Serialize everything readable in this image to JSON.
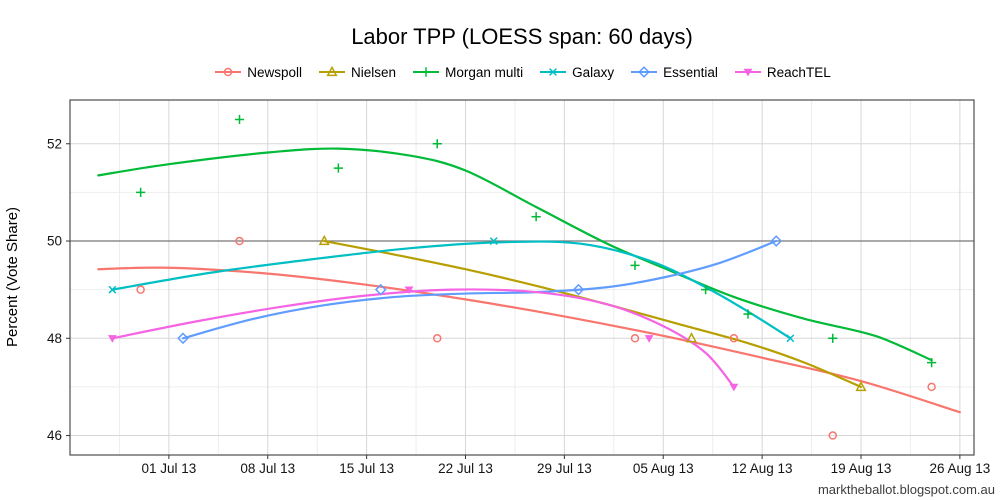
{
  "watermark": "marktheballot.blogspot.com.au",
  "chart_data": {
    "type": "scatter",
    "title": "Labor TPP (LOESS span: 60 days)",
    "ylabel": "Percent (Vote Share)",
    "xlabel": "",
    "legend_position": "top",
    "grid": true,
    "x_domain": [
      "2013-06-24",
      "2013-08-27"
    ],
    "y_domain": [
      45.6,
      52.9
    ],
    "reference_line_y": 50,
    "y_ticks": [
      46,
      48,
      50,
      52
    ],
    "y_minor": [
      47,
      49,
      51
    ],
    "x_ticks": [
      {
        "date": "2013-07-01",
        "label": "01 Jul 13"
      },
      {
        "date": "2013-07-08",
        "label": "08 Jul 13"
      },
      {
        "date": "2013-07-15",
        "label": "15 Jul 13"
      },
      {
        "date": "2013-07-22",
        "label": "22 Jul 13"
      },
      {
        "date": "2013-07-29",
        "label": "29 Jul 13"
      },
      {
        "date": "2013-08-05",
        "label": "05 Aug 13"
      },
      {
        "date": "2013-08-12",
        "label": "12 Aug 13"
      },
      {
        "date": "2013-08-19",
        "label": "19 Aug 13"
      },
      {
        "date": "2013-08-26",
        "label": "26 Aug 13"
      }
    ],
    "x_minor": [
      "2013-06-27T12:00:00Z",
      "2013-07-04T12:00:00Z",
      "2013-07-11T12:00:00Z",
      "2013-07-18T12:00:00Z",
      "2013-07-25T12:00:00Z",
      "2013-08-01T12:00:00Z",
      "2013-08-08T12:00:00Z",
      "2013-08-15T12:00:00Z",
      "2013-08-22T12:00:00Z"
    ],
    "series": [
      {
        "name": "Newspoll",
        "color": "#F8766D",
        "marker": "circle-open",
        "points": [
          [
            "2013-06-29",
            49
          ],
          [
            "2013-07-06",
            50
          ],
          [
            "2013-07-20",
            48
          ],
          [
            "2013-08-03",
            48
          ],
          [
            "2013-08-10",
            48
          ],
          [
            "2013-08-17",
            46
          ],
          [
            "2013-08-24",
            47
          ]
        ],
        "smooth": [
          [
            "2013-06-26",
            49.42
          ],
          [
            "2013-07-01",
            49.45
          ],
          [
            "2013-07-08",
            49.33
          ],
          [
            "2013-07-15",
            49.1
          ],
          [
            "2013-07-22",
            48.8
          ],
          [
            "2013-07-29",
            48.45
          ],
          [
            "2013-08-05",
            48.05
          ],
          [
            "2013-08-12",
            47.6
          ],
          [
            "2013-08-19",
            47.12
          ],
          [
            "2013-08-26",
            46.48
          ]
        ]
      },
      {
        "name": "Nielsen",
        "color": "#B79F00",
        "marker": "triangle-open",
        "points": [
          [
            "2013-07-12",
            50
          ],
          [
            "2013-08-07",
            48
          ],
          [
            "2013-08-19",
            47
          ]
        ],
        "smooth": [
          [
            "2013-07-12",
            50
          ],
          [
            "2013-07-17",
            49.72
          ],
          [
            "2013-07-22",
            49.42
          ],
          [
            "2013-07-27",
            49.08
          ],
          [
            "2013-08-01",
            48.7
          ],
          [
            "2013-08-06",
            48.3
          ],
          [
            "2013-08-11",
            47.9
          ],
          [
            "2013-08-15",
            47.5
          ],
          [
            "2013-08-19",
            47
          ]
        ]
      },
      {
        "name": "Morgan multi",
        "color": "#00BA38",
        "marker": "plus",
        "points": [
          [
            "2013-06-29",
            51
          ],
          [
            "2013-07-06",
            52.5
          ],
          [
            "2013-07-13",
            51.5
          ],
          [
            "2013-07-20",
            52
          ],
          [
            "2013-07-27",
            50.5
          ],
          [
            "2013-08-03",
            49.5
          ],
          [
            "2013-08-08",
            49
          ],
          [
            "2013-08-11",
            48.5
          ],
          [
            "2013-08-17",
            48
          ],
          [
            "2013-08-24",
            47.5
          ]
        ],
        "smooth": [
          [
            "2013-06-26",
            51.35
          ],
          [
            "2013-07-01",
            51.58
          ],
          [
            "2013-07-08",
            51.82
          ],
          [
            "2013-07-13",
            51.9
          ],
          [
            "2013-07-18",
            51.76
          ],
          [
            "2013-07-22",
            51.45
          ],
          [
            "2013-07-27",
            50.7
          ],
          [
            "2013-08-01",
            49.95
          ],
          [
            "2013-08-05",
            49.45
          ],
          [
            "2013-08-10",
            48.85
          ],
          [
            "2013-08-15",
            48.4
          ],
          [
            "2013-08-20",
            48.05
          ],
          [
            "2013-08-24",
            47.55
          ]
        ]
      },
      {
        "name": "Galaxy",
        "color": "#00BFC4",
        "marker": "x",
        "points": [
          [
            "2013-06-27",
            49
          ],
          [
            "2013-07-24",
            50
          ],
          [
            "2013-08-14",
            48
          ]
        ],
        "smooth": [
          [
            "2013-06-27",
            49
          ],
          [
            "2013-07-04",
            49.35
          ],
          [
            "2013-07-11",
            49.62
          ],
          [
            "2013-07-18",
            49.85
          ],
          [
            "2013-07-24",
            49.97
          ],
          [
            "2013-07-30",
            49.95
          ],
          [
            "2013-08-04",
            49.6
          ],
          [
            "2013-08-08",
            49.05
          ],
          [
            "2013-08-11",
            48.55
          ],
          [
            "2013-08-14",
            48
          ]
        ]
      },
      {
        "name": "Essential",
        "color": "#619CFF",
        "marker": "diamond-open",
        "points": [
          [
            "2013-07-02",
            48
          ],
          [
            "2013-07-16",
            49
          ],
          [
            "2013-07-30",
            49
          ],
          [
            "2013-08-13",
            50
          ]
        ],
        "smooth": [
          [
            "2013-07-02",
            48
          ],
          [
            "2013-07-07",
            48.4
          ],
          [
            "2013-07-12",
            48.68
          ],
          [
            "2013-07-17",
            48.85
          ],
          [
            "2013-07-22",
            48.92
          ],
          [
            "2013-07-27",
            48.95
          ],
          [
            "2013-08-01",
            49.05
          ],
          [
            "2013-08-05",
            49.25
          ],
          [
            "2013-08-09",
            49.55
          ],
          [
            "2013-08-13",
            50
          ]
        ]
      },
      {
        "name": "ReachTEL",
        "color": "#F564E3",
        "marker": "triangle-down-filled",
        "points": [
          [
            "2013-06-27",
            48
          ],
          [
            "2013-07-18",
            49
          ],
          [
            "2013-08-04",
            48
          ],
          [
            "2013-08-10",
            47
          ]
        ],
        "smooth": [
          [
            "2013-06-27",
            48
          ],
          [
            "2013-07-03",
            48.35
          ],
          [
            "2013-07-09",
            48.65
          ],
          [
            "2013-07-15",
            48.88
          ],
          [
            "2013-07-21",
            49
          ],
          [
            "2013-07-27",
            48.95
          ],
          [
            "2013-08-01",
            48.7
          ],
          [
            "2013-08-05",
            48.25
          ],
          [
            "2013-08-08",
            47.7
          ],
          [
            "2013-08-10",
            47
          ]
        ]
      }
    ]
  }
}
